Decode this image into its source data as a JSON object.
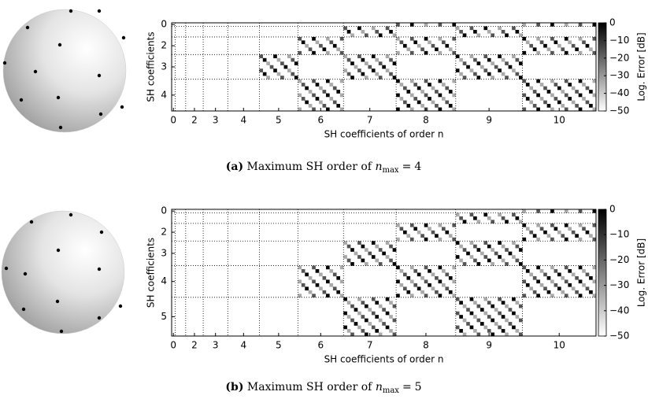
{
  "figures": [
    {
      "label": "(a)",
      "caption": "Maximum SH order of",
      "math_var": "n",
      "math_sub": "max",
      "math_eq": "=",
      "n_max": 4,
      "matrix": {
        "y_label": "SH coefficients",
        "x_label": "SH coefficients of order n",
        "yticks": [
          0,
          2,
          3,
          4
        ],
        "xticks": [
          0,
          2,
          3,
          4,
          5,
          6,
          7,
          8,
          9,
          10
        ],
        "colorbar": {
          "label": "Log. Error [dB]",
          "lim": [
            -50,
            0
          ],
          "ticks": [
            0,
            {
              "value": -10,
              "label": "−10"
            },
            {
              "value": -20,
              "label": "−20"
            },
            {
              "value": -30,
              "label": "−30"
            },
            {
              "value": -40,
              "label": "−40"
            },
            {
              "value": -50,
              "label": "−50"
            }
          ]
        }
      }
    },
    {
      "label": "(b)",
      "caption": "Maximum SH order of",
      "math_var": "n",
      "math_sub": "max",
      "math_eq": "=",
      "n_max": 5,
      "matrix": {
        "y_label": "SH coefficients",
        "x_label": "SH coefficients of order n",
        "yticks": [
          0,
          2,
          3,
          4,
          5
        ],
        "xticks": [
          0,
          2,
          3,
          4,
          5,
          6,
          7,
          8,
          9,
          10
        ],
        "colorbar": {
          "label": "Log. Error [dB]",
          "lim": [
            -50,
            0
          ],
          "ticks": [
            0,
            {
              "value": -10,
              "label": "−10"
            },
            {
              "value": -20,
              "label": "−20"
            },
            {
              "value": -30,
              "label": "−30"
            },
            {
              "value": -40,
              "label": "−40"
            },
            {
              "value": -50,
              "label": "−50"
            }
          ]
        }
      }
    }
  ]
}
